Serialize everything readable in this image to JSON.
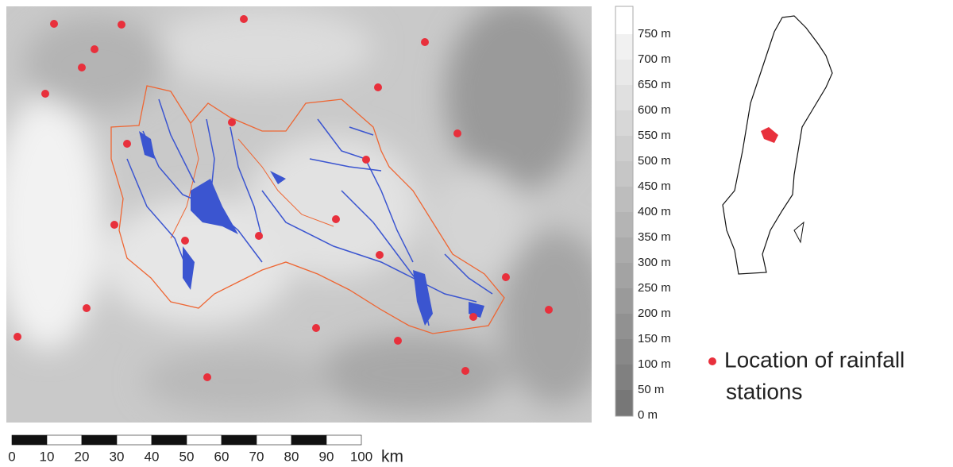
{
  "legend": {
    "elevation_labels": [
      "750 m",
      "700 m",
      "650 m",
      "600 m",
      "550 m",
      "500 m",
      "450 m",
      "400 m",
      "350 m",
      "300 m",
      "250 m",
      "200 m",
      "150 m",
      "100 m",
      "50 m",
      "0 m"
    ],
    "stations_line1": "Location of rainfall",
    "stations_line2": "stations"
  },
  "scale_bar": {
    "labels": [
      "0",
      "10",
      "20",
      "30",
      "40",
      "50",
      "60",
      "70",
      "80",
      "90",
      "100"
    ],
    "unit": "km"
  }
}
